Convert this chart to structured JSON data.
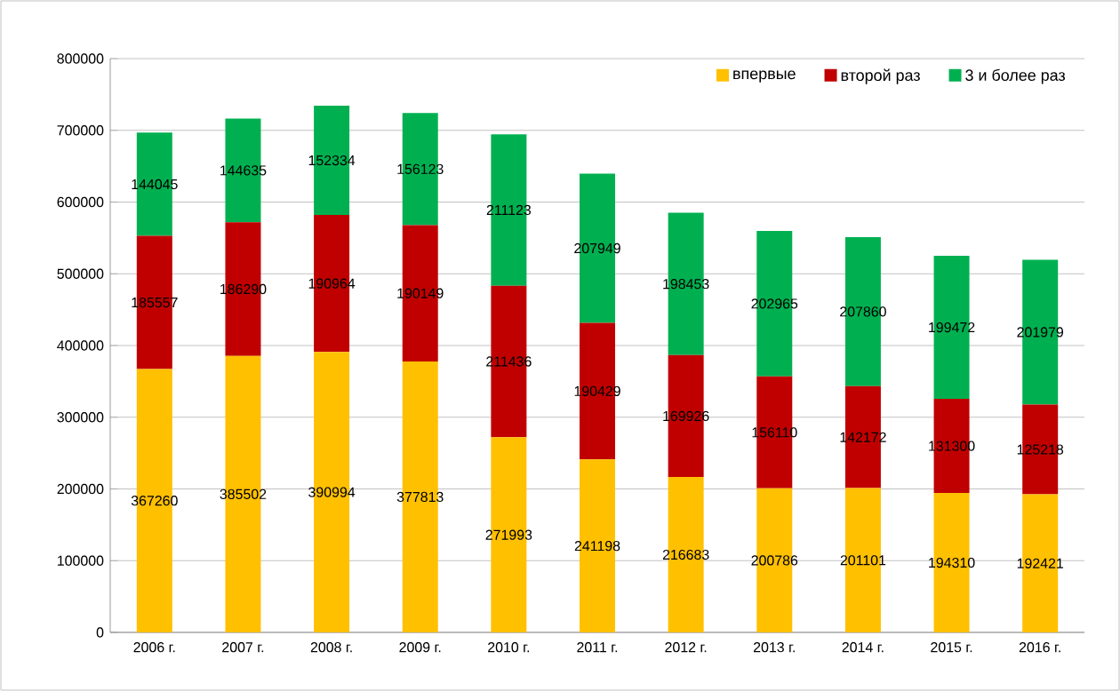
{
  "chart_data": {
    "type": "bar",
    "stacked": true,
    "categories": [
      "2006 г.",
      "2007 г.",
      "2008 г.",
      "2009 г.",
      "2010 г.",
      "2011 г.",
      "2012 г.",
      "2013 г.",
      "2014 г.",
      "2015 г.",
      "2016 г."
    ],
    "series": [
      {
        "name": "впервые",
        "color": "#ffc000",
        "values": [
          367260,
          385502,
          390994,
          377813,
          271993,
          241198,
          216683,
          200786,
          201101,
          194310,
          192421
        ]
      },
      {
        "name": "второй раз",
        "color": "#c00000",
        "values": [
          185557,
          186290,
          190964,
          190149,
          211436,
          190429,
          169926,
          156110,
          142172,
          131300,
          125218
        ]
      },
      {
        "name": "3 и более раз",
        "color": "#00b050",
        "values": [
          144045,
          144635,
          152334,
          156123,
          211123,
          207949,
          198453,
          202965,
          207860,
          199472,
          201979
        ]
      }
    ],
    "ylim": [
      0,
      800000
    ],
    "yticks": [
      0,
      100000,
      200000,
      300000,
      400000,
      500000,
      600000,
      700000,
      800000
    ],
    "grid": "y",
    "legend": "top right",
    "data_labels": true
  }
}
